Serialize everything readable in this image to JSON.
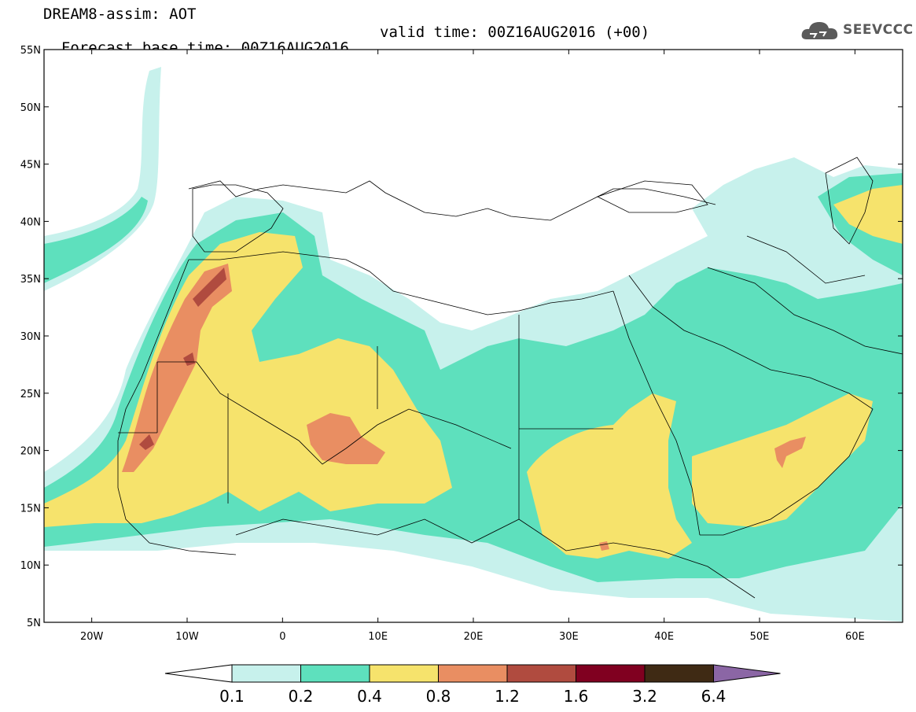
{
  "header": {
    "title": "DREAM8-assim: AOT",
    "base_time": "Forecast base time: 00Z16AUG2016",
    "valid_time": "valid time: 00Z16AUG2016 (+00)"
  },
  "logo": {
    "text": "SEEVCCC",
    "icon": "cloud-icon"
  },
  "map": {
    "variable": "AOT",
    "lon_range": [
      -25,
      65
    ],
    "lat_range": [
      5,
      55
    ],
    "lat_ticks": [
      "55N",
      "50N",
      "45N",
      "40N",
      "35N",
      "30N",
      "25N",
      "20N",
      "15N",
      "10N",
      "5N"
    ],
    "lon_ticks": [
      "20W",
      "10W",
      "0",
      "10E",
      "20E",
      "30E",
      "40E",
      "50E",
      "60E"
    ]
  },
  "colorbar": {
    "levels": [
      "0.1",
      "0.2",
      "0.4",
      "0.8",
      "1.2",
      "1.6",
      "3.2",
      "6.4"
    ],
    "colors": [
      "#ffffff",
      "#c7f1ec",
      "#5ee0bd",
      "#f6e36c",
      "#e98e62",
      "#b04b3f",
      "#800020",
      "#3f2a14",
      "#8b66a5"
    ]
  }
}
